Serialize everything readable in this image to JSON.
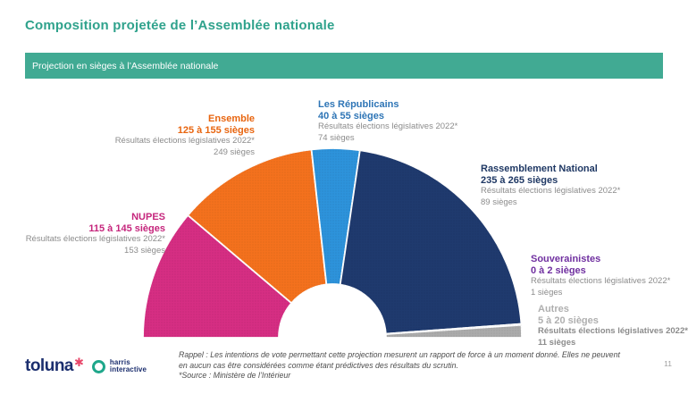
{
  "page": {
    "title": "Composition projetée de l’Assemblée nationale",
    "banner": "Projection en sièges à l’Assemblée nationale",
    "page_number": "11"
  },
  "footnote": {
    "line1": "Rappel : Les intentions de vote permettant cette projection mesurent un rapport de force à un moment donné. Elles ne peuvent",
    "line2": "en aucun cas être considérées comme étant prédictives des résultats du scrutin.",
    "line3": "*Source : Ministère de l’Intérieur"
  },
  "logo": {
    "toluna": "toluna",
    "star": "✱",
    "harris_line1": "harris",
    "harris_line2": "interactive"
  },
  "chart_data": {
    "type": "pie",
    "subtype": "hemicycle-donut",
    "title": "Projection en sièges à l’Assemblée nationale",
    "layout": "semicircle 180°, donut hole, ordered left to right",
    "series": [
      {
        "party": "NUPES",
        "projection_label": "115 à 145 sièges",
        "projection_min": 115,
        "projection_max": 145,
        "reference_label": "Résultats élections législatives 2022*",
        "reference_seats": "153 sièges",
        "color": "#d62e83",
        "label_color": "#c5257c"
      },
      {
        "party": "Ensemble",
        "projection_label": "125 à 155 sièges",
        "projection_min": 125,
        "projection_max": 155,
        "reference_label": "Résultats élections législatives 2022*",
        "reference_seats": "249 sièges",
        "color": "#f4711d",
        "label_color": "#e8650f"
      },
      {
        "party": "Les Républicains",
        "projection_label": "40 à 55 sièges",
        "projection_min": 40,
        "projection_max": 55,
        "reference_label": "Résultats élections législatives 2022*",
        "reference_seats": "74 sièges",
        "color": "#2d93db",
        "label_color": "#2e75b6"
      },
      {
        "party": "Rassemblement National",
        "projection_label": "235 à 265 sièges",
        "projection_min": 235,
        "projection_max": 265,
        "reference_label": "Résultats élections législatives 2022*",
        "reference_seats": "89 sièges",
        "color": "#1f3a6e",
        "label_color": "#1f3864"
      },
      {
        "party": "Souverainistes",
        "projection_label": "0 à 2 sièges",
        "projection_min": 0,
        "projection_max": 2,
        "reference_label": "Résultats élections législatives 2022*",
        "reference_seats": "1 sièges",
        "color": "#7030a0",
        "label_color": "#7030a0"
      },
      {
        "party": "Autres",
        "projection_label": "5 à 20 sièges",
        "projection_min": 5,
        "projection_max": 20,
        "reference_label": "Résultats élections législatives 2022*",
        "reference_seats": "11 sièges",
        "color": "#ababab",
        "label_color": "#afafaf"
      }
    ],
    "colors": {
      "accent_teal": "#41aa93",
      "title_teal": "#2fa28c",
      "subtext_gray": "#8c8c8c"
    }
  }
}
